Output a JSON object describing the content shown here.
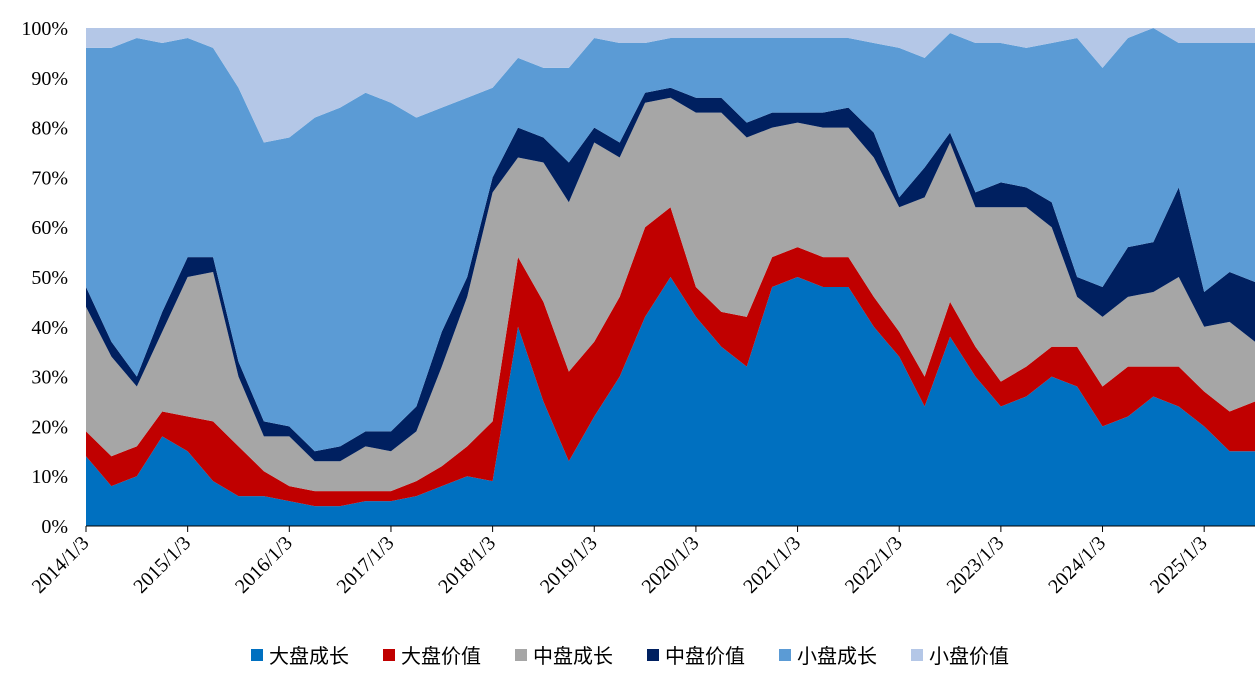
{
  "chart_data": {
    "type": "area",
    "stacked": true,
    "normalized": true,
    "title": "",
    "xlabel": "",
    "ylabel": "",
    "ylim": [
      0,
      100
    ],
    "y_ticks": [
      "0%",
      "10%",
      "20%",
      "30%",
      "40%",
      "50%",
      "60%",
      "70%",
      "80%",
      "90%",
      "100%"
    ],
    "x_ticks": [
      "2014/1/3",
      "2015/1/3",
      "2016/1/3",
      "2017/1/3",
      "2018/1/3",
      "2019/1/3",
      "2020/1/3",
      "2021/1/3",
      "2022/1/3",
      "2023/1/3",
      "2024/1/3",
      "2025/1/3"
    ],
    "x": [
      "2014/1/3",
      "2014/4/3",
      "2014/7/3",
      "2014/10/3",
      "2015/1/3",
      "2015/4/3",
      "2015/7/3",
      "2015/10/3",
      "2016/1/3",
      "2016/4/3",
      "2016/7/3",
      "2016/10/3",
      "2017/1/3",
      "2017/4/3",
      "2017/7/3",
      "2017/10/3",
      "2018/1/3",
      "2018/4/3",
      "2018/7/3",
      "2018/10/3",
      "2019/1/3",
      "2019/4/3",
      "2019/7/3",
      "2019/10/3",
      "2020/1/3",
      "2020/4/3",
      "2020/7/3",
      "2020/10/3",
      "2021/1/3",
      "2021/4/3",
      "2021/7/3",
      "2021/10/3",
      "2022/1/3",
      "2022/4/3",
      "2022/7/3",
      "2022/10/3",
      "2023/1/3",
      "2023/4/3",
      "2023/7/3",
      "2023/10/3",
      "2024/1/3",
      "2024/4/3",
      "2024/7/3",
      "2024/10/3",
      "2025/1/3",
      "2025/4/3",
      "2025/7/3"
    ],
    "legend_position": "bottom",
    "series": [
      {
        "name": "大盘成长",
        "color": "#0070C0",
        "values": [
          14,
          8,
          10,
          18,
          15,
          9,
          6,
          6,
          5,
          4,
          4,
          5,
          5,
          6,
          8,
          10,
          9,
          40,
          25,
          13,
          22,
          30,
          42,
          50,
          42,
          36,
          32,
          48,
          50,
          48,
          48,
          40,
          34,
          24,
          38,
          30,
          24,
          26,
          30,
          28,
          20,
          22,
          26,
          24,
          20,
          15,
          15
        ]
      },
      {
        "name": "大盘价值",
        "color": "#C00000",
        "values": [
          5,
          6,
          6,
          5,
          7,
          12,
          10,
          5,
          3,
          3,
          3,
          2,
          2,
          3,
          4,
          6,
          12,
          14,
          20,
          18,
          15,
          16,
          18,
          14,
          6,
          7,
          10,
          6,
          6,
          6,
          6,
          6,
          5,
          6,
          7,
          6,
          5,
          6,
          6,
          8,
          8,
          10,
          6,
          8,
          7,
          8,
          10
        ]
      },
      {
        "name": "中盘成长",
        "color": "#A6A6A6",
        "values": [
          25,
          20,
          12,
          16,
          28,
          30,
          14,
          7,
          10,
          6,
          6,
          9,
          8,
          10,
          20,
          30,
          46,
          20,
          28,
          34,
          40,
          28,
          25,
          22,
          35,
          40,
          36,
          26,
          25,
          26,
          26,
          28,
          25,
          36,
          32,
          28,
          35,
          32,
          24,
          10,
          14,
          14,
          15,
          18,
          13,
          18,
          12
        ]
      },
      {
        "name": "中盘价值",
        "color": "#002060",
        "values": [
          4,
          3,
          2,
          4,
          4,
          3,
          3,
          3,
          2,
          2,
          3,
          3,
          4,
          5,
          7,
          4,
          3,
          6,
          5,
          8,
          3,
          3,
          2,
          2,
          3,
          3,
          3,
          3,
          2,
          3,
          4,
          5,
          2,
          6,
          2,
          3,
          5,
          4,
          5,
          4,
          6,
          10,
          10,
          18,
          7,
          10,
          12
        ]
      },
      {
        "name": "小盘成长",
        "color": "#5B9BD5",
        "values": [
          48,
          59,
          68,
          54,
          44,
          42,
          55,
          56,
          58,
          67,
          68,
          68,
          66,
          58,
          45,
          36,
          18,
          14,
          14,
          19,
          18,
          20,
          10,
          10,
          12,
          12,
          17,
          15,
          15,
          15,
          14,
          18,
          30,
          22,
          20,
          30,
          28,
          28,
          32,
          48,
          44,
          42,
          43,
          29,
          50,
          46,
          48
        ]
      },
      {
        "name": "小盘价值",
        "color": "#B4C7E7",
        "values": [
          4,
          4,
          2,
          3,
          2,
          4,
          12,
          23,
          22,
          18,
          16,
          13,
          15,
          18,
          16,
          14,
          12,
          6,
          8,
          8,
          2,
          3,
          3,
          2,
          2,
          2,
          2,
          2,
          2,
          2,
          2,
          3,
          4,
          6,
          1,
          3,
          3,
          4,
          3,
          2,
          8,
          2,
          0,
          3,
          3,
          3,
          3
        ]
      }
    ]
  }
}
